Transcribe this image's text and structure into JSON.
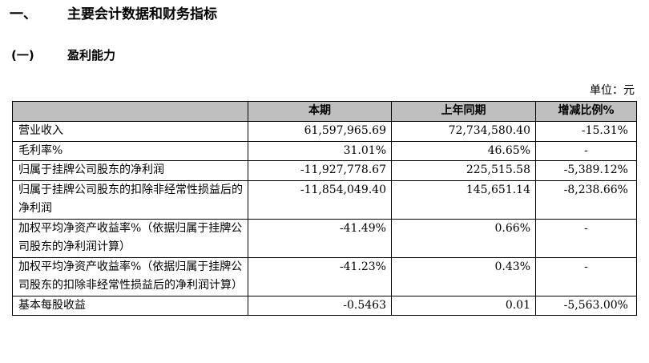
{
  "section1": {
    "number": "一、",
    "title": "主要会计数据和财务指标"
  },
  "section2": {
    "number": "(一)",
    "title": "盈利能力"
  },
  "unit_label": "单位：元",
  "table": {
    "headers": [
      "",
      "本期",
      "上年同期",
      "增减比例%"
    ],
    "rows": [
      {
        "label": "营业收入",
        "current": "61,597,965.69",
        "prior": "72,734,580.40",
        "change": "-15.31%"
      },
      {
        "label": "毛利率%",
        "current": "31.01%",
        "prior": "46.65%",
        "change": "-"
      },
      {
        "label": "归属于挂牌公司股东的净利润",
        "current": "-11,927,778.67",
        "prior": "225,515.58",
        "change": "-5,389.12%"
      },
      {
        "label": "归属于挂牌公司股东的扣除非经常性损益后的净利润",
        "current": "-11,854,049.40",
        "prior": "145,651.14",
        "change": "-8,238.66%"
      },
      {
        "label": "加权平均净资产收益率%（依据归属于挂牌公司股东的净利润计算）",
        "current": "-41.49%",
        "prior": "0.66%",
        "change": "-"
      },
      {
        "label": "加权平均净资产收益率%（依据归属于挂牌公司股东的扣除非经常性损益后的净利润计算）",
        "current": "-41.23%",
        "prior": "0.43%",
        "change": "-"
      },
      {
        "label": "基本每股收益",
        "current": "-0.5463",
        "prior": "0.01",
        "change": "-5,563.00%"
      }
    ]
  }
}
